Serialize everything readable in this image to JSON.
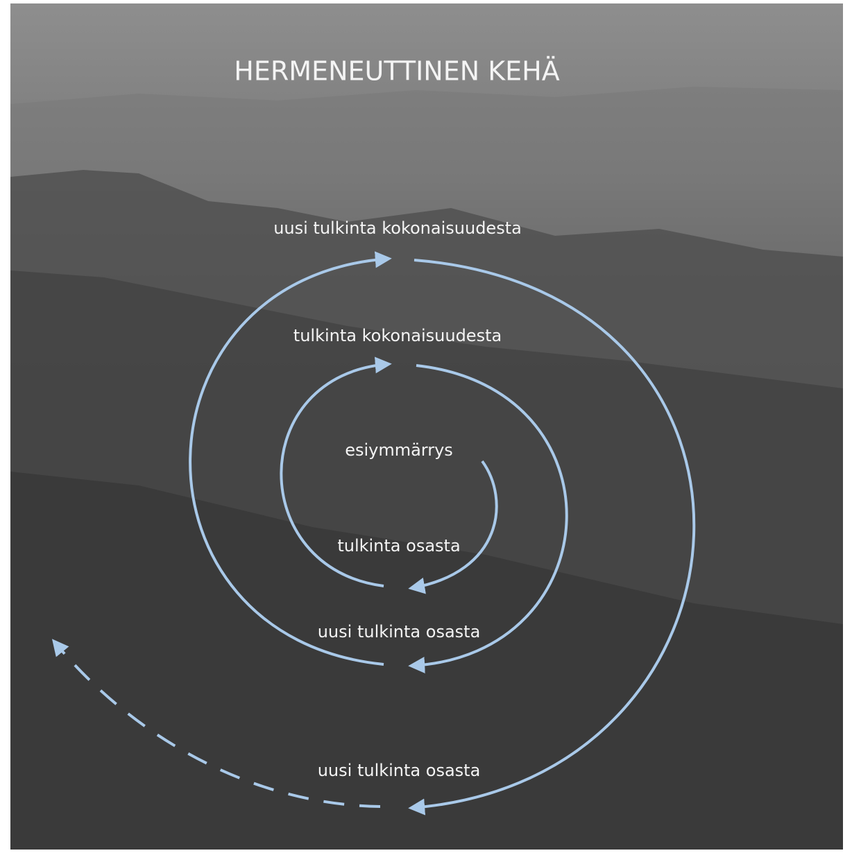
{
  "title": "HERMENEUTTINEN KEHÄ",
  "nodes": [
    {
      "label": "uusi tulkinta kokonaisuudesta"
    },
    {
      "label": "tulkinta kokonaisuudesta"
    },
    {
      "label": "esiymmärrys"
    },
    {
      "label": "tulkinta osasta"
    },
    {
      "label": "uusi tulkinta osasta"
    },
    {
      "label": "uusi tulkinta osasta"
    }
  ]
}
